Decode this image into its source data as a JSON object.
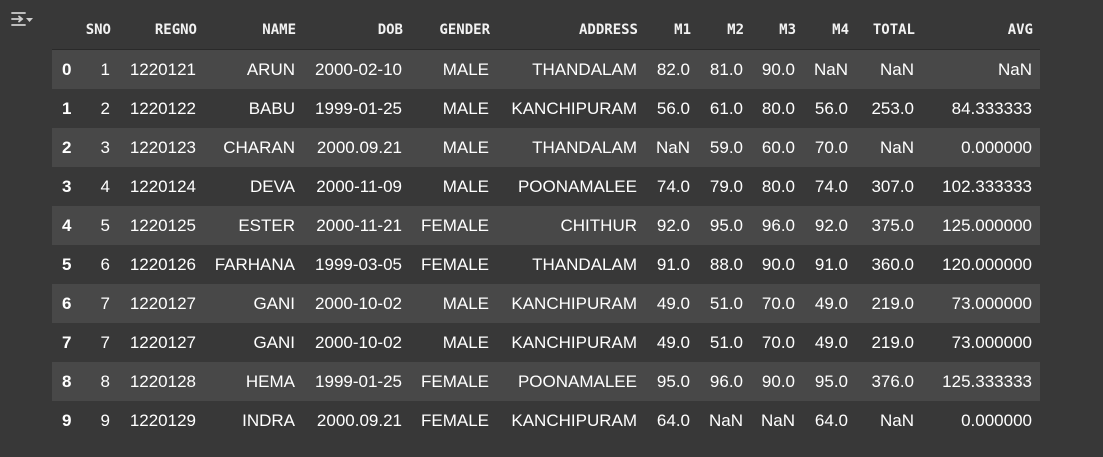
{
  "columns": [
    "",
    "SNO",
    "REGNO",
    "NAME",
    "DOB",
    "GENDER",
    "ADDRESS",
    "M1",
    "M2",
    "M3",
    "M4",
    "TOTAL",
    "AVG"
  ],
  "rows": [
    [
      "0",
      "1",
      "1220121",
      "ARUN",
      "2000-02-10",
      "MALE",
      "THANDALAM",
      "82.0",
      "81.0",
      "90.0",
      "NaN",
      "NaN",
      "NaN"
    ],
    [
      "1",
      "2",
      "1220122",
      "BABU",
      "1999-01-25",
      "MALE",
      "KANCHIPURAM",
      "56.0",
      "61.0",
      "80.0",
      "56.0",
      "253.0",
      "84.333333"
    ],
    [
      "2",
      "3",
      "1220123",
      "CHARAN",
      "2000.09.21",
      "MALE",
      "THANDALAM",
      "NaN",
      "59.0",
      "60.0",
      "70.0",
      "NaN",
      "0.000000"
    ],
    [
      "3",
      "4",
      "1220124",
      "DEVA",
      "2000-11-09",
      "MALE",
      "POONAMALEE",
      "74.0",
      "79.0",
      "80.0",
      "74.0",
      "307.0",
      "102.333333"
    ],
    [
      "4",
      "5",
      "1220125",
      "ESTER",
      "2000-11-21",
      "FEMALE",
      "CHITHUR",
      "92.0",
      "95.0",
      "96.0",
      "92.0",
      "375.0",
      "125.000000"
    ],
    [
      "5",
      "6",
      "1220126",
      "FARHANA",
      "1999-03-05",
      "FEMALE",
      "THANDALAM",
      "91.0",
      "88.0",
      "90.0",
      "91.0",
      "360.0",
      "120.000000"
    ],
    [
      "6",
      "7",
      "1220127",
      "GANI",
      "2000-10-02",
      "MALE",
      "KANCHIPURAM",
      "49.0",
      "51.0",
      "70.0",
      "49.0",
      "219.0",
      "73.000000"
    ],
    [
      "7",
      "7",
      "1220127",
      "GANI",
      "2000-10-02",
      "MALE",
      "KANCHIPURAM",
      "49.0",
      "51.0",
      "70.0",
      "49.0",
      "219.0",
      "73.000000"
    ],
    [
      "8",
      "8",
      "1220128",
      "HEMA",
      "1999-01-25",
      "FEMALE",
      "POONAMALEE",
      "95.0",
      "96.0",
      "90.0",
      "95.0",
      "376.0",
      "125.333333"
    ],
    [
      "9",
      "9",
      "1220129",
      "INDRA",
      "2000.09.21",
      "FEMALE",
      "KANCHIPURAM",
      "64.0",
      "NaN",
      "NaN",
      "64.0",
      "NaN",
      "0.000000"
    ]
  ],
  "icons": {
    "output_toggle": "output-actions-icon"
  },
  "colors": {
    "background": "#383838",
    "row_stripe": "#484848",
    "text": "#ffffff",
    "icon": "#cfcfcf"
  }
}
